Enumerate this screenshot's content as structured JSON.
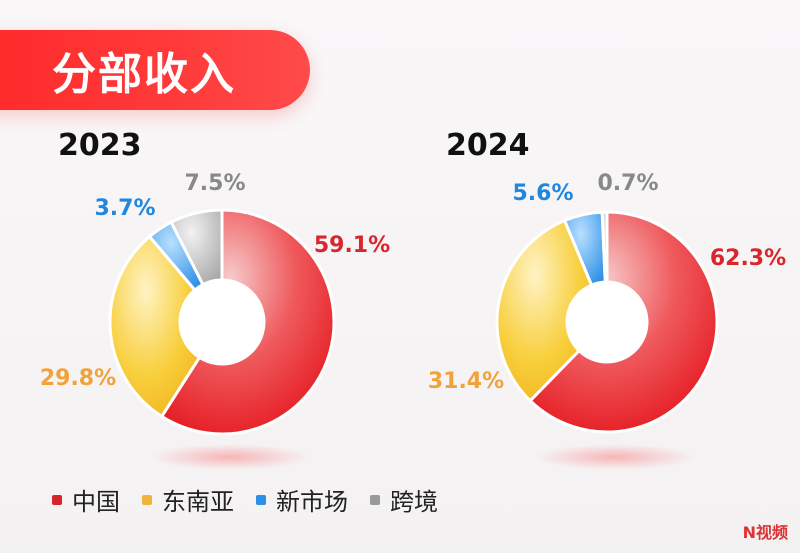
{
  "title": "分部收入",
  "legend": [
    {
      "label": "中国",
      "color": "#d7242a"
    },
    {
      "label": "东南亚",
      "color": "#f1b43a"
    },
    {
      "label": "新市场",
      "color": "#2b8fe6"
    },
    {
      "label": "跨境",
      "color": "#9a9a9a"
    }
  ],
  "watermark": "N视频",
  "chart_data": [
    {
      "type": "pie",
      "title": "2023",
      "categories": [
        "中国",
        "东南亚",
        "新市场",
        "跨境"
      ],
      "values": [
        59.1,
        29.8,
        3.7,
        7.5
      ],
      "labels": [
        "59.1%",
        "29.8%",
        "3.7%",
        "7.5%"
      ],
      "colors": [
        "#e8232a",
        "#f6c22b",
        "#3a96e9",
        "#b8b8b8"
      ],
      "label_colors": [
        "#d9262c",
        "#f0a33a",
        "#1f87e0",
        "#888888"
      ]
    },
    {
      "type": "pie",
      "title": "2024",
      "categories": [
        "中国",
        "东南亚",
        "新市场",
        "跨境"
      ],
      "values": [
        62.3,
        31.4,
        5.6,
        0.7
      ],
      "labels": [
        "62.3%",
        "31.4%",
        "5.6%",
        "0.7%"
      ],
      "colors": [
        "#e8232a",
        "#f6c22b",
        "#3a96e9",
        "#b8b8b8"
      ],
      "label_colors": [
        "#d9262c",
        "#f0a33a",
        "#1f87e0",
        "#888888"
      ]
    }
  ]
}
